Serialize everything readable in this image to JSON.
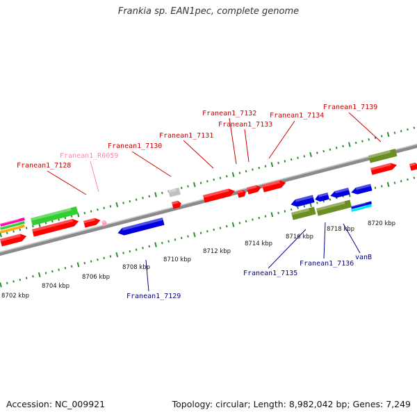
{
  "title": "Frankia sp. EAN1pec, complete genome",
  "footer": {
    "accession": "Accession: NC_009921",
    "summary": "Topology: circular; Length: 8,982,042 bp; Genes: 7,249"
  },
  "colors": {
    "cds": "#ff0000",
    "rna": "#ffa0c0",
    "reverse_cds": "#0000dd",
    "olive_gene": "#6b8e23",
    "green_gene": "#32cd32",
    "backbone": "#8a8a8a",
    "tick": "#2e8b2e",
    "forward_label": "#cc0000",
    "reverse_label": "#00008b",
    "rna_label": "#ff88aa"
  },
  "scale_labels": [
    "8702 kbp",
    "8704 kbp",
    "8706 kbp",
    "8708 kbp",
    "8710 kbp",
    "8712 kbp",
    "8714 kbp",
    "8716 kbp",
    "8718 kbp",
    "8720 kbp"
  ],
  "forward_labels": [
    {
      "name": "Franean1_7128",
      "kind": "cds"
    },
    {
      "name": "Franean1_R0059",
      "kind": "rna"
    },
    {
      "name": "Franean1_7130",
      "kind": "cds"
    },
    {
      "name": "Franean1_7131",
      "kind": "cds"
    },
    {
      "name": "Franean1_7132",
      "kind": "cds"
    },
    {
      "name": "Franean1_7133",
      "kind": "cds"
    },
    {
      "name": "Franean1_7134",
      "kind": "cds"
    },
    {
      "name": "Franean1_7139",
      "kind": "cds"
    }
  ],
  "reverse_labels": [
    {
      "name": "Franean1_7129"
    },
    {
      "name": "Franean1_7135"
    },
    {
      "name": "Franean1_7136"
    },
    {
      "name": "vanB"
    }
  ]
}
